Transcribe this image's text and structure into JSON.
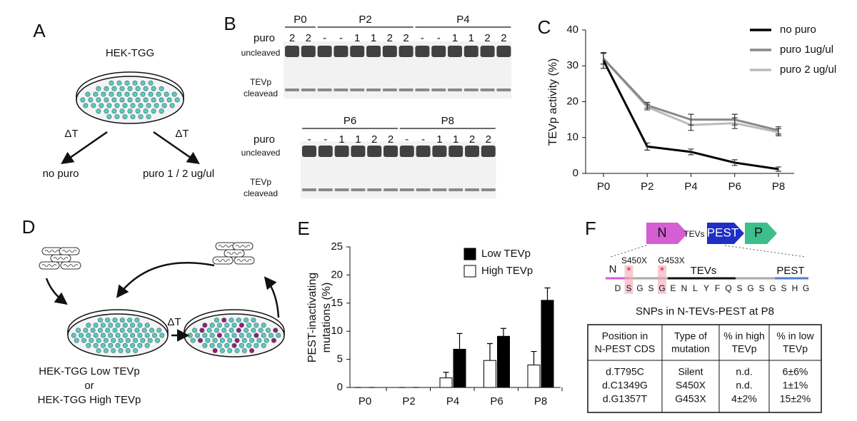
{
  "panel_labels": [
    "A",
    "B",
    "C",
    "D",
    "E",
    "F"
  ],
  "panel_a": {
    "title": "HEK-TGG",
    "arrow_labels": [
      "ΔT",
      "ΔT"
    ],
    "outcomes": [
      "no puro",
      "puro 1 / 2 ug/ul"
    ]
  },
  "panel_b": {
    "row_label": "puro",
    "band_labels": {
      "uncleaved": "uncleaved",
      "cleaved": [
        "TEVp",
        "cleavead"
      ]
    },
    "gels": [
      {
        "passages": [
          "P0",
          "P2",
          "P4"
        ],
        "lanes": [
          "2",
          "2",
          "-",
          "-",
          "1",
          "1",
          "2",
          "2",
          "-",
          "-",
          "1",
          "1",
          "2",
          "2"
        ]
      },
      {
        "passages": [
          "P6",
          "P8"
        ],
        "lanes": [
          "-",
          "-",
          "1",
          "1",
          "2",
          "2",
          "-",
          "-",
          "1",
          "1",
          "2",
          "2"
        ]
      }
    ]
  },
  "chart_data": [
    {
      "type": "line",
      "ylabel": "TEVp activity (%)",
      "categories": [
        "P0",
        "P2",
        "P4",
        "P6",
        "P8"
      ],
      "series": [
        {
          "name": "no puro",
          "color": "#000000",
          "values": [
            31.5,
            7.5,
            6,
            3,
            1.2
          ],
          "errors": [
            2.2,
            1,
            0.8,
            0.8,
            0.6
          ]
        },
        {
          "name": "puro 1ug/ul",
          "color": "#888888",
          "values": [
            32,
            19,
            15,
            15,
            12
          ],
          "errors": [
            1.5,
            0.8,
            1.5,
            1.5,
            1
          ]
        },
        {
          "name": "puro 2 ug/ul",
          "color": "#bbbbbb",
          "values": [
            32,
            18.5,
            13.5,
            14,
            11.5
          ],
          "errors": [
            1.5,
            0.8,
            1.5,
            1.5,
            1
          ]
        }
      ],
      "ylim": [
        0,
        40
      ],
      "yticks": [
        0,
        10,
        20,
        30,
        40
      ],
      "legend": "upper right"
    },
    {
      "type": "bar",
      "ylabel": [
        "PEST-inactivating",
        "mutations (%)"
      ],
      "categories": [
        "P0",
        "P2",
        "P4",
        "P6",
        "P8"
      ],
      "series": [
        {
          "name": "Low TEVp",
          "color": "#000000",
          "values": [
            0,
            0,
            6.8,
            9.1,
            15.5
          ],
          "errors": [
            0,
            0,
            2.8,
            1.4,
            2.2
          ]
        },
        {
          "name": "High TEVp",
          "color": "#ffffff",
          "values": [
            0,
            0,
            1.7,
            4.8,
            4
          ],
          "errors": [
            0,
            0,
            1,
            3,
            2.4
          ]
        }
      ],
      "ylim": [
        0,
        25
      ],
      "yticks": [
        0,
        5,
        10,
        15,
        20,
        25
      ],
      "legend": "upper right"
    }
  ],
  "panel_d": {
    "arrow_label": "ΔT",
    "caption": [
      "HEK-TGG Low TEVp",
      "or",
      "HEK-TGG High TEVp"
    ]
  },
  "panel_f": {
    "construct": [
      "N",
      "TEVs",
      "PEST",
      "P"
    ],
    "regions": [
      "N",
      "TEVs",
      "PEST"
    ],
    "mutations": [
      "S450X",
      "G453X"
    ],
    "sequence": [
      "D",
      "S",
      "G",
      "S",
      "G",
      "E",
      "N",
      "L",
      "Y",
      "F",
      "Q",
      "S",
      "G",
      "S",
      "G",
      "S",
      "H",
      "G"
    ],
    "table_title": "SNPs in N-TEVs-PEST at P8",
    "table": {
      "header": [
        [
          "Position in",
          "N-PEST CDS"
        ],
        [
          "Type of",
          "mutation"
        ],
        [
          "% in high",
          "TEVp"
        ],
        [
          "% in low",
          "TEVp"
        ]
      ],
      "rows": [
        [
          "d.T795C",
          "Silent",
          "n.d.",
          "6±6%"
        ],
        [
          "d.C1349G",
          "S450X",
          "n.d.",
          "1±1%"
        ],
        [
          "d.G1357T",
          "G453X",
          "4±2%",
          "15±2%"
        ]
      ]
    }
  }
}
